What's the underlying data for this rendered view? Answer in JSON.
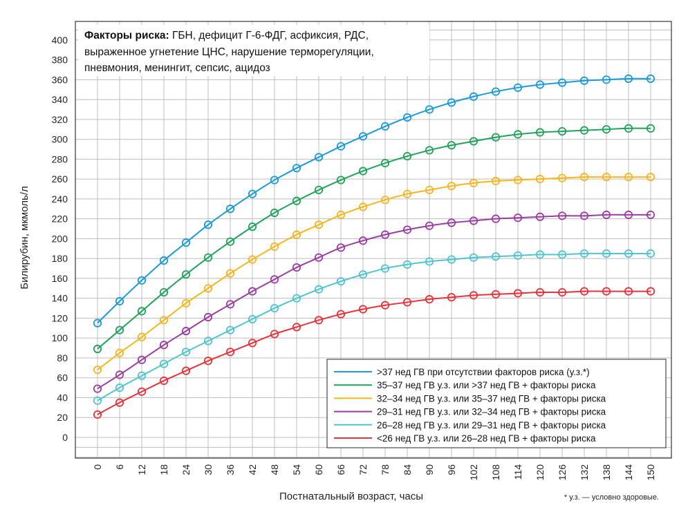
{
  "chart_data": {
    "type": "line",
    "xlabel": "Постнатальный возраст, часы",
    "ylabel": "Билирубин, мкмоль/л",
    "x": [
      0,
      6,
      12,
      18,
      24,
      30,
      36,
      42,
      48,
      54,
      60,
      66,
      72,
      78,
      84,
      90,
      96,
      102,
      108,
      114,
      120,
      126,
      132,
      138,
      144,
      150
    ],
    "xlim": [
      0,
      150
    ],
    "ylim": [
      0,
      400
    ],
    "y_ticks": [
      0,
      20,
      40,
      60,
      80,
      100,
      120,
      140,
      160,
      180,
      200,
      220,
      240,
      260,
      280,
      300,
      320,
      340,
      360,
      380,
      400
    ],
    "x_ticks": [
      "0",
      "6",
      "12",
      "18",
      "24",
      "30",
      "36",
      "42",
      "48",
      "54",
      "60",
      "66",
      "72",
      "78",
      "84",
      "90",
      "96",
      "102",
      "108",
      "114",
      "120",
      "126",
      "132",
      "138",
      "144",
      "150"
    ],
    "grid": true,
    "legend_position": "bottom-right",
    "risk_box": {
      "bold": "Факторы риска:",
      "line1": " ГБН, дефицит Г-6-ФДГ, асфиксия, РДС,",
      "line2": "выраженное угнетение ЦНС, нарушение терморегуляции,",
      "line3": "пневмония, менингит, сепсис, ацидоз"
    },
    "footnote": "* у.з. — условно здоровые.",
    "series": [
      {
        "name": ">37 нед ГВ при отсутствии факторов риска (у.з.*)",
        "color": "#1a9ad6",
        "values": [
          115,
          137,
          158,
          178,
          196,
          214,
          230,
          245,
          259,
          271,
          282,
          293,
          303,
          313,
          322,
          330,
          337,
          343,
          348,
          352,
          355,
          357,
          359,
          360,
          361,
          361
        ]
      },
      {
        "name": "35–37 нед ГВ у.з. или >37 нед ГВ + факторы риска",
        "color": "#1fa25a",
        "values": [
          89,
          108,
          127,
          146,
          164,
          181,
          197,
          212,
          226,
          238,
          249,
          259,
          268,
          276,
          283,
          289,
          294,
          298,
          302,
          305,
          307,
          308,
          309,
          310,
          311,
          311
        ]
      },
      {
        "name": "32–34 нед ГВ у.з. или 35–37 нед ГВ + факторы риска",
        "color": "#f7b51d",
        "values": [
          68,
          85,
          101,
          118,
          135,
          150,
          165,
          179,
          192,
          204,
          214,
          224,
          232,
          239,
          245,
          249,
          253,
          256,
          258,
          259,
          260,
          261,
          262,
          262,
          262,
          262
        ]
      },
      {
        "name": "29–31 нед ГВ у.з. или 32–34 нед ГВ + факторы риска",
        "color": "#9a3da0",
        "values": [
          49,
          63,
          78,
          93,
          107,
          121,
          134,
          147,
          159,
          171,
          181,
          191,
          198,
          204,
          209,
          213,
          216,
          218,
          220,
          221,
          222,
          223,
          223,
          224,
          224,
          224
        ]
      },
      {
        "name": "26–28 нед ГВ у.з. или 29–31 нед ГВ + факторы риска",
        "color": "#4fc4cf",
        "values": [
          37,
          50,
          62,
          74,
          86,
          97,
          108,
          119,
          130,
          140,
          149,
          157,
          164,
          170,
          174,
          177,
          179,
          181,
          182,
          183,
          184,
          184,
          185,
          185,
          185,
          185
        ]
      },
      {
        "name": "<26 нед ГВ у.з. или 26–28 нед ГВ + факторы риска",
        "color": "#e8323a",
        "values": [
          23,
          35,
          46,
          57,
          67,
          77,
          86,
          95,
          104,
          111,
          118,
          124,
          129,
          133,
          136,
          139,
          141,
          143,
          144,
          145,
          146,
          146,
          147,
          147,
          147,
          147
        ]
      }
    ]
  }
}
